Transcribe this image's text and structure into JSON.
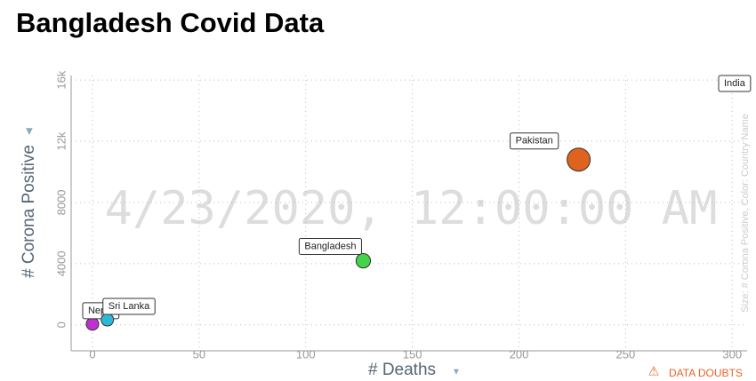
{
  "chart_data": {
    "type": "scatter",
    "title": "Bangladesh Covid Data",
    "time_label": "4/23/2020, 12:00:00 AM",
    "x_label": "# Deaths",
    "y_label": "# Corona Positive",
    "size_label": "Size: # Corona Positive, Color: Country Name",
    "warning": "DATA DOUBTS",
    "points": [
      {
        "name": "Nepal",
        "color": "#c02fd0",
        "x": 0,
        "y": 50
      },
      {
        "name": "Sri Lanka",
        "color": "#2db8d8",
        "x": 7,
        "y": 330
      },
      {
        "name": "Bangladesh",
        "color": "#44d34a",
        "x": 127,
        "y": 4186
      },
      {
        "name": "Pakistan",
        "color": "#e0621f",
        "x": 228,
        "y": 10800
      },
      {
        "name": "India",
        "color": "#f2a51f",
        "x": null,
        "y": null
      }
    ],
    "xlim": [
      -10,
      307
    ],
    "ylim": [
      -1700,
      16300
    ],
    "xticks": [
      0,
      50,
      100,
      150,
      200,
      250,
      300
    ],
    "yticks": [
      0,
      4000,
      8000,
      {
        "value": 12000,
        "label": "12k"
      },
      {
        "value": 16000,
        "label": "16k"
      }
    ],
    "grid": true
  }
}
